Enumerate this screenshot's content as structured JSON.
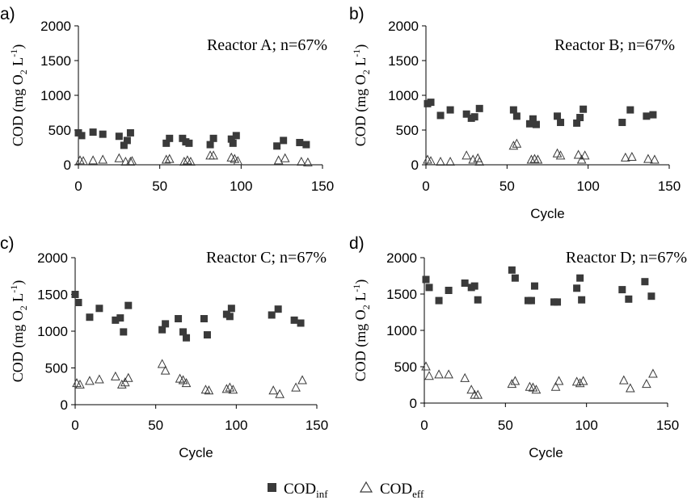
{
  "legend": {
    "items": [
      {
        "base": "COD",
        "sub": "inf",
        "marker": "filled-square"
      },
      {
        "base": "COD",
        "sub": "eff",
        "marker": "open-triangle"
      }
    ]
  },
  "chart_data": [
    {
      "type": "scatter",
      "panel_label": "a)",
      "annotation": "Reactor A; n=67%",
      "ylabel": {
        "pre": "COD (mg O",
        "sub": "2",
        "mid": " L",
        "sup": "-1",
        "post": ")"
      },
      "xlabel": "",
      "xlim": [
        0,
        150
      ],
      "ylim": [
        0,
        2000
      ],
      "xticks": [
        "0",
        "50",
        "100",
        "150"
      ],
      "yticks": [
        "0",
        "500",
        "1000",
        "1500",
        "2000"
      ],
      "series": [
        {
          "name": "CODinf",
          "marker": "filled-square",
          "x": [
            0,
            2,
            9,
            15,
            25,
            28,
            30,
            32,
            54,
            56,
            64,
            66,
            68,
            81,
            83,
            94,
            95,
            97,
            122,
            126,
            136,
            140
          ],
          "y": [
            460,
            420,
            470,
            440,
            410,
            280,
            350,
            460,
            310,
            380,
            380,
            330,
            310,
            290,
            380,
            370,
            310,
            420,
            270,
            350,
            320,
            290
          ]
        },
        {
          "name": "CODeff",
          "marker": "open-triangle",
          "x": [
            1,
            3,
            9,
            15,
            25,
            29,
            32,
            33,
            54,
            56,
            65,
            67,
            69,
            81,
            83,
            94,
            96,
            98,
            123,
            127,
            137,
            141
          ],
          "y": [
            60,
            50,
            60,
            70,
            90,
            40,
            40,
            50,
            70,
            80,
            40,
            60,
            40,
            130,
            130,
            100,
            80,
            50,
            60,
            90,
            40,
            30
          ]
        }
      ]
    },
    {
      "type": "scatter",
      "panel_label": "b)",
      "annotation": "Reactor B; n=67%",
      "ylabel": {
        "pre": "COD (mg O",
        "sub": "2",
        "mid": " L",
        "sup": "-1",
        "post": ")"
      },
      "xlabel": "Cycle",
      "xlim": [
        0,
        150
      ],
      "ylim": [
        0,
        2000
      ],
      "xticks": [
        "0",
        "50",
        "100",
        "150"
      ],
      "yticks": [
        "0",
        "500",
        "1000",
        "1500",
        "2000"
      ],
      "series": [
        {
          "name": "CODinf",
          "marker": "filled-square",
          "x": [
            1,
            3,
            9,
            15,
            25,
            28,
            30,
            33,
            54,
            56,
            64,
            66,
            68,
            81,
            83,
            93,
            95,
            97,
            121,
            126,
            136,
            140
          ],
          "y": [
            880,
            900,
            710,
            790,
            730,
            670,
            690,
            810,
            790,
            700,
            590,
            660,
            580,
            700,
            610,
            600,
            680,
            800,
            610,
            790,
            700,
            720
          ]
        },
        {
          "name": "CODeff",
          "marker": "open-triangle",
          "x": [
            1,
            3,
            9,
            15,
            25,
            29,
            32,
            33,
            54,
            56,
            65,
            67,
            69,
            81,
            83,
            94,
            96,
            98,
            123,
            127,
            137,
            141
          ],
          "y": [
            70,
            50,
            40,
            40,
            130,
            70,
            90,
            40,
            270,
            300,
            70,
            80,
            70,
            160,
            130,
            140,
            70,
            130,
            100,
            110,
            80,
            70
          ]
        }
      ]
    },
    {
      "type": "scatter",
      "panel_label": "c)",
      "annotation": "Reactor C; n=67%",
      "ylabel": {
        "pre": "COD (mg O",
        "sub": "2",
        "mid": " L",
        "sup": "-1",
        "post": ")"
      },
      "xlabel": "Cycle",
      "xlim": [
        0,
        150
      ],
      "ylim": [
        0,
        2000
      ],
      "xticks": [
        "0",
        "50",
        "100",
        "150"
      ],
      "yticks": [
        "0",
        "500",
        "1000",
        "1500",
        "2000"
      ],
      "series": [
        {
          "name": "CODinf",
          "marker": "filled-square",
          "x": [
            0,
            2,
            9,
            15,
            25,
            28,
            30,
            33,
            54,
            56,
            64,
            67,
            69,
            80,
            82,
            94,
            96,
            97,
            122,
            126,
            136,
            140
          ],
          "y": [
            1500,
            1390,
            1190,
            1310,
            1150,
            1180,
            990,
            1350,
            1020,
            1100,
            1170,
            990,
            910,
            1170,
            950,
            1230,
            1200,
            1310,
            1220,
            1300,
            1150,
            1110
          ]
        },
        {
          "name": "CODeff",
          "marker": "open-triangle",
          "x": [
            1,
            3,
            9,
            15,
            25,
            29,
            31,
            33,
            54,
            56,
            65,
            67,
            69,
            81,
            83,
            94,
            96,
            98,
            123,
            127,
            137,
            141
          ],
          "y": [
            290,
            270,
            320,
            340,
            380,
            270,
            300,
            360,
            550,
            460,
            350,
            330,
            290,
            200,
            190,
            210,
            230,
            200,
            190,
            140,
            230,
            330
          ]
        }
      ]
    },
    {
      "type": "scatter",
      "panel_label": "d)",
      "annotation": "Reactor D; n=67%",
      "ylabel": {
        "pre": "COD (mg O",
        "sub": "2",
        "mid": " L",
        "sup": "-1",
        "post": ")"
      },
      "xlabel": "Cycle",
      "xlim": [
        0,
        150
      ],
      "ylim": [
        0,
        2000
      ],
      "xticks": [
        "0",
        "50",
        "100",
        "150"
      ],
      "yticks": [
        "0",
        "500",
        "1000",
        "1500",
        "2000"
      ],
      "series": [
        {
          "name": "CODinf",
          "marker": "filled-square",
          "x": [
            1,
            3,
            9,
            15,
            25,
            29,
            31,
            33,
            54,
            56,
            64,
            66,
            68,
            80,
            82,
            94,
            96,
            97,
            122,
            126,
            136,
            140
          ],
          "y": [
            1700,
            1590,
            1410,
            1550,
            1650,
            1590,
            1610,
            1420,
            1830,
            1720,
            1410,
            1410,
            1610,
            1390,
            1390,
            1580,
            1720,
            1420,
            1560,
            1430,
            1670,
            1470
          ]
        },
        {
          "name": "CODeff",
          "marker": "open-triangle",
          "x": [
            1,
            3,
            9,
            15,
            25,
            29,
            31,
            33,
            54,
            56,
            65,
            67,
            69,
            81,
            83,
            94,
            96,
            98,
            123,
            127,
            137,
            141
          ],
          "y": [
            500,
            370,
            390,
            390,
            340,
            180,
            110,
            110,
            260,
            300,
            220,
            210,
            180,
            220,
            300,
            290,
            270,
            300,
            310,
            200,
            260,
            400
          ]
        }
      ]
    }
  ]
}
